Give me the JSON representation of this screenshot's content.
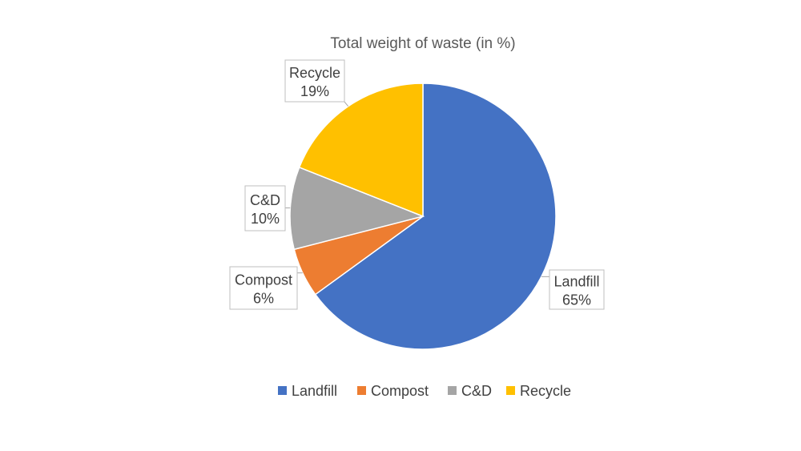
{
  "chart_data": {
    "type": "pie",
    "title": "Total weight of waste (in %)",
    "categories": [
      "Landfill",
      "Compost",
      "C&D",
      "Recycle"
    ],
    "values": [
      65,
      6,
      10,
      19
    ],
    "data_labels": [
      "65%",
      "6%",
      "10%",
      "19%"
    ],
    "colors": [
      "#4472C4",
      "#ED7D31",
      "#A5A5A5",
      "#FFC000"
    ],
    "start_angle": "12 o'clock",
    "direction": "clockwise",
    "legend_position": "bottom"
  }
}
